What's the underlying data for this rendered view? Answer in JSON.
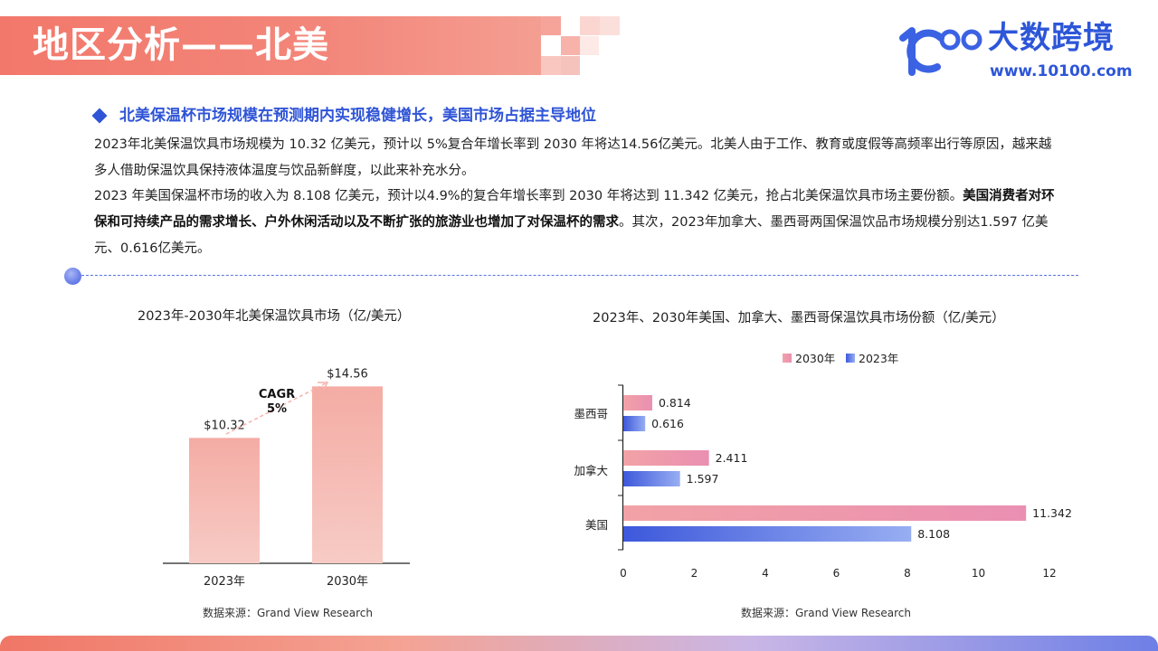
{
  "header": {
    "title": "地区分析——北美"
  },
  "brand": {
    "name": "大数跨境",
    "url": "www.10100.com",
    "logo_icon": "logo-10100-icon"
  },
  "section": {
    "heading": "北美保温杯市场规模在预测期内实现稳健增长，美国市场占据主导地位",
    "para1": "2023年北美保温饮具市场规模为 10.32 亿美元，预计以 5%复合年增长率到 2030 年将达14.56亿美元。北美人由于工作、教育或度假等高频率出行等原因，越来越多人借助保温饮具保持液体温度与饮品新鲜度，以此来补充水分。",
    "para2_a": "2023 年美国保温杯市场的收入为 8.108 亿美元，预计以4.9%的复合年增长率到 2030 年将达到 11.342 亿美元，抢占北美保温饮具市场主要份额。",
    "para2_bold": "美国消费者对环保和可持续产品的需求增长、户外休闲活动以及不断扩张的旅游业也增加了对保温杯的需求",
    "para2_c": "。其次，2023年加拿大、墨西哥两国保温饮品市场规模分别达1.597 亿美元、0.616亿美元。"
  },
  "chart_data": [
    {
      "type": "bar",
      "title": "2023年-2030年北美保温饮具市场（亿/美元）",
      "categories": [
        "2023年",
        "2030年"
      ],
      "values": [
        10.32,
        14.56
      ],
      "value_labels": [
        "$10.32",
        "$14.56"
      ],
      "annotation": {
        "line1": "CAGR",
        "line2": "5%"
      },
      "ylim": [
        0,
        16
      ],
      "bar_color": "#f3b4ad",
      "source": "数据来源：Grand View Research"
    },
    {
      "type": "bar",
      "orientation": "horizontal",
      "title": "2023年、2030年美国、加拿大、墨西哥保温饮具市场份额（亿/美元）",
      "categories": [
        "墨西哥",
        "加拿大",
        "美国"
      ],
      "series": [
        {
          "name": "2030年",
          "values": [
            0.814,
            2.411,
            11.342
          ],
          "color": "#ec93a8"
        },
        {
          "name": "2023年",
          "values": [
            0.616,
            1.597,
            8.108
          ],
          "color": "#4a64df"
        }
      ],
      "xlim": [
        0,
        12
      ],
      "xticks": [
        0,
        2,
        4,
        6,
        8,
        10,
        12
      ],
      "legend": "top",
      "source": "数据来源：Grand View Research"
    }
  ]
}
